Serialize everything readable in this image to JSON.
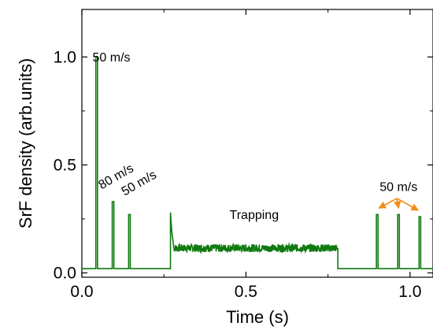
{
  "chart_data": {
    "type": "line",
    "title": "",
    "xlabel": "Time (s)",
    "ylabel": "SrF density (arb.units)",
    "xlim": [
      0.0,
      1.07
    ],
    "ylim": [
      -0.02,
      1.22
    ],
    "x_ticks": [
      "0.0",
      "0.5",
      "1.0"
    ],
    "x_tick_values": [
      0.0,
      0.5,
      1.0
    ],
    "y_ticks": [
      "0.0",
      "0.5",
      "1.0"
    ],
    "y_tick_values": [
      0.0,
      0.5,
      1.0
    ],
    "grid": false,
    "series": [
      {
        "color": "#0f7a0f",
        "baseline": 0.02,
        "peaks": [
          {
            "x": 0.045,
            "y": 1.0
          },
          {
            "x": 0.095,
            "y": 0.33
          },
          {
            "x": 0.145,
            "y": 0.27
          },
          {
            "x": 0.9,
            "y": 0.27
          },
          {
            "x": 0.965,
            "y": 0.27
          },
          {
            "x": 1.03,
            "y": 0.26
          }
        ],
        "trapping": {
          "x_start": 0.27,
          "x_end": 0.78,
          "onset_peak": 0.28,
          "level": 0.115,
          "noise": 0.018
        }
      }
    ],
    "annotations": [
      {
        "text": "50 m/s",
        "x": 0.09,
        "y": 0.98,
        "rotation": 0
      },
      {
        "text": "80 m/s",
        "x": 0.11,
        "y": 0.43,
        "rotation": -30
      },
      {
        "text": "50 m/s",
        "x": 0.18,
        "y": 0.4,
        "rotation": -30
      },
      {
        "text": "Trapping",
        "x": 0.525,
        "y": 0.25,
        "rotation": 0
      },
      {
        "text": "50 m/s",
        "x": 0.965,
        "y": 0.38,
        "rotation": 0
      }
    ],
    "arrows": {
      "color": "#f28a1a",
      "from": [
        0.96,
        0.345
      ],
      "to": [
        [
          0.905,
          0.3
        ],
        [
          0.965,
          0.3
        ],
        [
          1.025,
          0.29
        ]
      ]
    }
  }
}
